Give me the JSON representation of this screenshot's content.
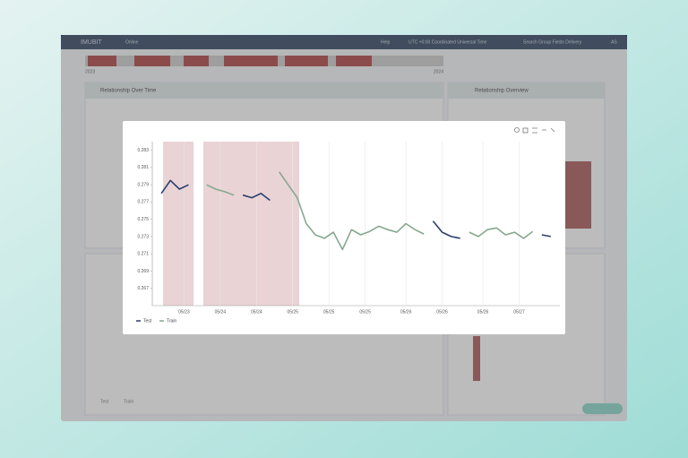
{
  "app": {
    "brand": "IMUBIT",
    "nav": "Online",
    "help": "Help",
    "timezone": "UTC +0:00 Coordinated Universal Time",
    "group": "Search Group Fields Delivery",
    "user": "AS"
  },
  "timeline": {
    "start": "2023",
    "end": "2024"
  },
  "panels": [
    {
      "title": "Relationship Over Time"
    },
    {
      "title": "Relationship Overview"
    }
  ],
  "chart_data": {
    "type": "line",
    "series": [
      {
        "name": "Test",
        "color": "#2b3f6e",
        "values": [
          0.278,
          0.2795,
          0.2785,
          0.279,
          null,
          null,
          null,
          null,
          null,
          0.2778,
          0.2775,
          0.278,
          0.2772,
          null,
          null,
          null,
          null,
          null,
          null,
          null,
          null,
          null,
          null,
          null,
          null,
          null,
          null,
          null,
          null,
          null,
          0.2748,
          0.2735,
          0.273,
          0.2728,
          null,
          null,
          null,
          null,
          null,
          null,
          null,
          null,
          0.2732,
          0.273
        ]
      },
      {
        "name": "Train",
        "color": "#86a88f",
        "values": [
          null,
          null,
          null,
          null,
          null,
          0.279,
          0.2785,
          0.2782,
          0.2778,
          null,
          null,
          null,
          null,
          0.2805,
          0.279,
          0.2775,
          0.2745,
          0.2732,
          0.2728,
          0.2735,
          0.2715,
          0.2738,
          0.2732,
          0.2736,
          0.2742,
          0.2738,
          0.2735,
          0.2745,
          0.2738,
          0.2733,
          null,
          null,
          null,
          null,
          0.2735,
          0.273,
          0.2738,
          0.274,
          0.2732,
          0.2735,
          0.2728,
          0.2736,
          null,
          null
        ]
      }
    ],
    "ylim": [
      0.265,
      0.284
    ],
    "yticks": [
      0.283,
      0.281,
      0.279,
      0.277,
      0.275,
      0.273,
      0.271,
      0.269,
      0.267
    ],
    "xlim": [
      -1,
      44
    ],
    "xticks": [
      {
        "value": 2.5,
        "label": "05/23"
      },
      {
        "value": 6.5,
        "label": "05/24"
      },
      {
        "value": 10.5,
        "label": "05/24"
      },
      {
        "value": 14.5,
        "label": "05/25"
      },
      {
        "value": 18.5,
        "label": "05/25"
      },
      {
        "value": 22.5,
        "label": "05/25"
      },
      {
        "value": 27,
        "label": "05/26"
      },
      {
        "value": 31,
        "label": "05/26"
      },
      {
        "value": 35.5,
        "label": "05/26"
      },
      {
        "value": 39.5,
        "label": "05/27"
      }
    ],
    "grid": true
  }
}
